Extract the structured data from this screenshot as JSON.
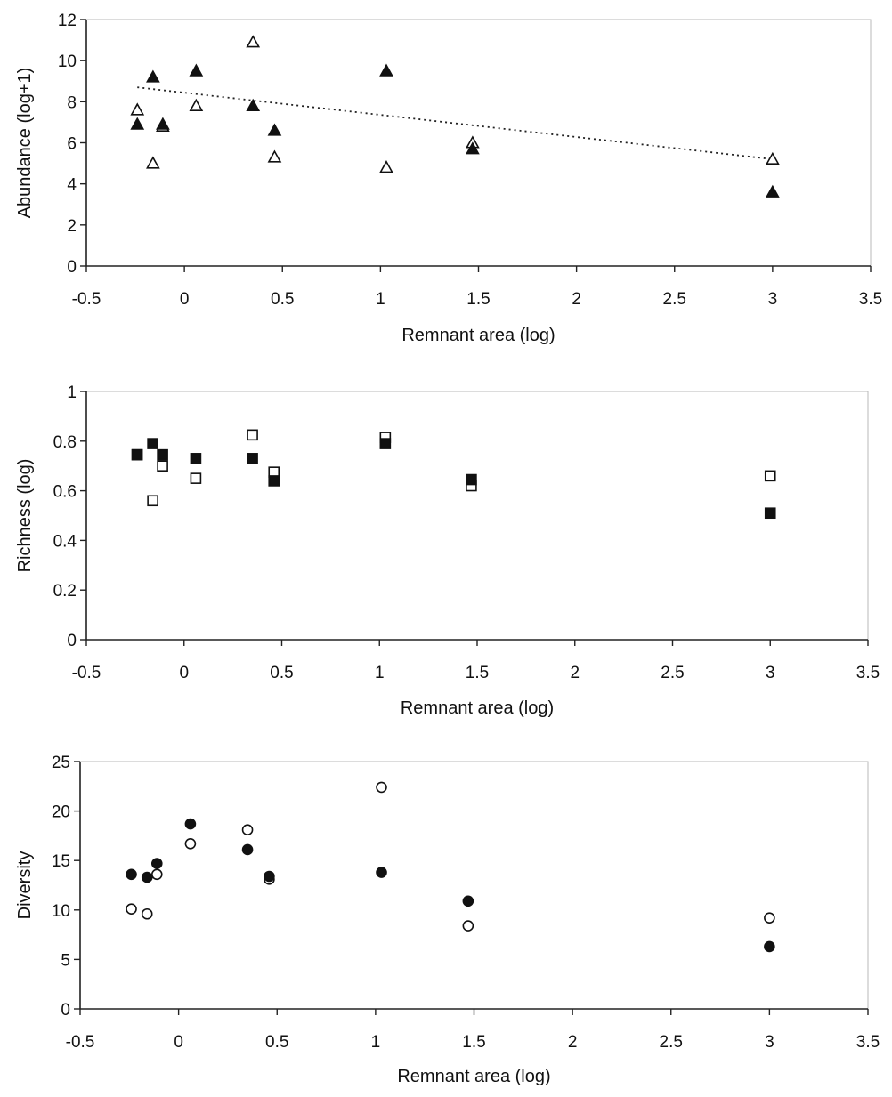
{
  "chart_data": [
    {
      "type": "scatter",
      "xlabel": "Remnant area (log)",
      "ylabel": "Abundance (log+1)",
      "xlim": [
        -0.5,
        3.5
      ],
      "ylim": [
        0,
        12
      ],
      "x_ticks": [
        "-0.5",
        "0",
        "0.5",
        "1",
        "1.5",
        "2",
        "2.5",
        "3",
        "3.5"
      ],
      "y_ticks": [
        "0",
        "2",
        "4",
        "6",
        "8",
        "10",
        "12"
      ],
      "grid": false,
      "marker": "triangle",
      "series": [
        {
          "fill": "filled",
          "points": [
            [
              -0.24,
              6.9
            ],
            [
              -0.16,
              9.2
            ],
            [
              -0.11,
              6.9
            ],
            [
              0.06,
              9.5
            ],
            [
              0.35,
              7.8
            ],
            [
              0.46,
              6.6
            ],
            [
              1.03,
              9.5
            ],
            [
              1.47,
              5.7
            ],
            [
              3.0,
              3.6
            ]
          ]
        },
        {
          "fill": "open",
          "points": [
            [
              -0.24,
              7.6
            ],
            [
              -0.16,
              5.0
            ],
            [
              -0.11,
              6.8
            ],
            [
              0.06,
              7.8
            ],
            [
              0.35,
              10.9
            ],
            [
              0.46,
              5.3
            ],
            [
              1.03,
              4.8
            ],
            [
              1.47,
              6.0
            ],
            [
              3.0,
              5.2
            ]
          ]
        }
      ],
      "trendline": {
        "style": "dotted",
        "from": [
          -0.24,
          8.7
        ],
        "to": [
          3.0,
          5.2
        ]
      }
    },
    {
      "type": "scatter",
      "xlabel": "Remnant area (log)",
      "ylabel": "Richness (log)",
      "xlim": [
        -0.5,
        3.5
      ],
      "ylim": [
        0,
        1
      ],
      "x_ticks": [
        "-0.5",
        "0",
        "0.5",
        "1",
        "1.5",
        "2",
        "2.5",
        "3",
        "3.5"
      ],
      "y_ticks": [
        "0",
        "0.2",
        "0.4",
        "0.6",
        "0.8",
        "1"
      ],
      "grid": false,
      "marker": "square",
      "series": [
        {
          "fill": "filled",
          "points": [
            [
              -0.24,
              0.745
            ],
            [
              -0.16,
              0.79
            ],
            [
              -0.11,
              0.745
            ],
            [
              0.06,
              0.73
            ],
            [
              0.35,
              0.73
            ],
            [
              0.46,
              0.64
            ],
            [
              1.03,
              0.79
            ],
            [
              1.47,
              0.645
            ],
            [
              3.0,
              0.51
            ]
          ]
        },
        {
          "fill": "open",
          "points": [
            [
              -0.24,
              0.745
            ],
            [
              -0.16,
              0.56
            ],
            [
              -0.11,
              0.7
            ],
            [
              0.06,
              0.65
            ],
            [
              0.35,
              0.825
            ],
            [
              0.46,
              0.675
            ],
            [
              1.03,
              0.815
            ],
            [
              1.47,
              0.62
            ],
            [
              3.0,
              0.66
            ]
          ]
        }
      ]
    },
    {
      "type": "scatter",
      "xlabel": "Remnant area (log)",
      "ylabel": "Diversity",
      "xlim": [
        -0.5,
        3.5
      ],
      "ylim": [
        0,
        25
      ],
      "x_ticks": [
        "-0.5",
        "0",
        "0.5",
        "1",
        "1.5",
        "2",
        "2.5",
        "3",
        "3.5"
      ],
      "y_ticks": [
        "0",
        "5",
        "10",
        "15",
        "20",
        "25"
      ],
      "grid": false,
      "marker": "circle",
      "series": [
        {
          "fill": "filled",
          "points": [
            [
              -0.24,
              13.6
            ],
            [
              -0.16,
              13.3
            ],
            [
              -0.11,
              14.7
            ],
            [
              0.06,
              18.7
            ],
            [
              0.35,
              16.1
            ],
            [
              0.46,
              13.4
            ],
            [
              1.03,
              13.8
            ],
            [
              1.47,
              10.9
            ],
            [
              3.0,
              6.3
            ]
          ]
        },
        {
          "fill": "open",
          "points": [
            [
              -0.24,
              10.1
            ],
            [
              -0.16,
              9.6
            ],
            [
              -0.11,
              13.6
            ],
            [
              0.06,
              16.7
            ],
            [
              0.35,
              18.1
            ],
            [
              0.46,
              13.1
            ],
            [
              1.03,
              22.4
            ],
            [
              1.47,
              8.4
            ],
            [
              3.0,
              9.2
            ]
          ]
        }
      ]
    }
  ]
}
